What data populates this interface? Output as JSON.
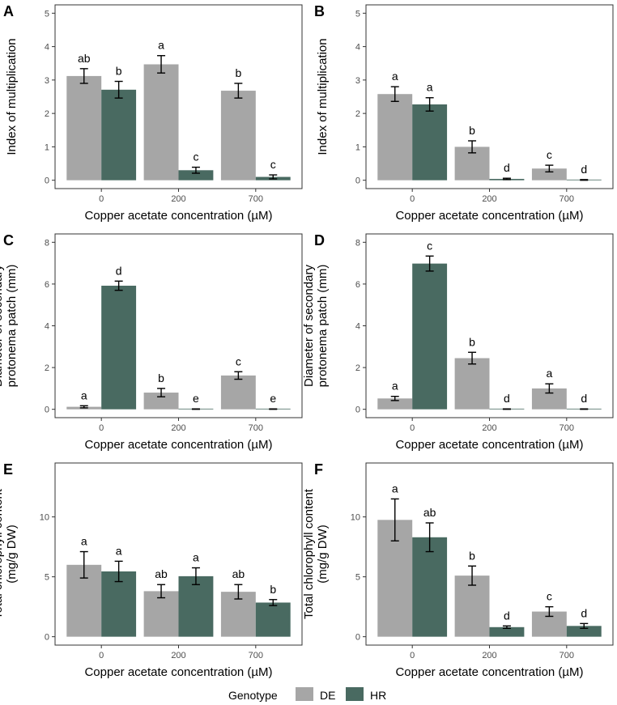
{
  "chart_data": [
    {
      "type": "bar",
      "panel": "A",
      "categories": [
        "0",
        "200",
        "700"
      ],
      "series": [
        {
          "name": "DE",
          "values": [
            3.12,
            3.47,
            2.68
          ],
          "errors": [
            0.22,
            0.26,
            0.22
          ],
          "letters": [
            "ab",
            "a",
            "b"
          ]
        },
        {
          "name": "HR",
          "values": [
            2.71,
            0.3,
            0.1
          ],
          "errors": [
            0.25,
            0.09,
            0.06
          ],
          "letters": [
            "b",
            "c",
            "c"
          ]
        }
      ],
      "ylabel": [
        "Index of multiplication"
      ],
      "xlabel": "Copper acetate concentration (µM)",
      "ylim": [
        -0.25,
        5.25
      ],
      "yticks": [
        0,
        1,
        2,
        3,
        4,
        5
      ]
    },
    {
      "type": "bar",
      "panel": "B",
      "categories": [
        "0",
        "200",
        "700"
      ],
      "series": [
        {
          "name": "DE",
          "values": [
            2.58,
            1.0,
            0.35
          ],
          "errors": [
            0.22,
            0.18,
            0.1
          ],
          "letters": [
            "a",
            "b",
            "c"
          ]
        },
        {
          "name": "HR",
          "values": [
            2.27,
            0.04,
            0.01
          ],
          "errors": [
            0.2,
            0.02,
            0.01
          ],
          "letters": [
            "a",
            "d",
            "d"
          ]
        }
      ],
      "ylabel": [
        "Index of multiplication"
      ],
      "xlabel": "Copper acetate concentration (µM)",
      "ylim": [
        -0.25,
        5.25
      ],
      "yticks": [
        0,
        1,
        2,
        3,
        4,
        5
      ]
    },
    {
      "type": "bar",
      "panel": "C",
      "categories": [
        "0",
        "200",
        "700"
      ],
      "series": [
        {
          "name": "DE",
          "values": [
            0.12,
            0.8,
            1.62
          ],
          "errors": [
            0.05,
            0.2,
            0.18
          ],
          "letters": [
            "a",
            "b",
            "c"
          ]
        },
        {
          "name": "HR",
          "values": [
            5.92,
            0.01,
            0.01
          ],
          "errors": [
            0.22,
            0.01,
            0.01
          ],
          "letters": [
            "d",
            "e",
            "e"
          ]
        }
      ],
      "ylabel": [
        "Diameter of secondary",
        "protonema patch (mm)"
      ],
      "xlabel": "Copper acetate concentration (µM)",
      "ylim": [
        -0.4,
        8.4
      ],
      "yticks": [
        0,
        2,
        4,
        6,
        8
      ]
    },
    {
      "type": "bar",
      "panel": "D",
      "categories": [
        "0",
        "200",
        "700"
      ],
      "series": [
        {
          "name": "DE",
          "values": [
            0.52,
            2.45,
            1.0
          ],
          "errors": [
            0.1,
            0.28,
            0.22
          ],
          "letters": [
            "a",
            "b",
            "a"
          ]
        },
        {
          "name": "HR",
          "values": [
            6.98,
            0.01,
            0.01
          ],
          "errors": [
            0.36,
            0.01,
            0.01
          ],
          "letters": [
            "c",
            "d",
            "d"
          ]
        }
      ],
      "ylabel": [
        "Diameter of secondary",
        "protonema patch (mm)"
      ],
      "xlabel": "Copper acetate concentration (µM)",
      "ylim": [
        -0.4,
        8.4
      ],
      "yticks": [
        0,
        2,
        4,
        6,
        8
      ]
    },
    {
      "type": "bar",
      "panel": "E",
      "categories": [
        "0",
        "200",
        "700"
      ],
      "series": [
        {
          "name": "DE",
          "values": [
            6.0,
            3.8,
            3.75
          ],
          "errors": [
            1.1,
            0.55,
            0.6
          ],
          "letters": [
            "a",
            "ab",
            "ab"
          ]
        },
        {
          "name": "HR",
          "values": [
            5.45,
            5.05,
            2.85
          ],
          "errors": [
            0.85,
            0.7,
            0.25
          ],
          "letters": [
            "a",
            "a",
            "b"
          ]
        }
      ],
      "ylabel": [
        "Total chlorophyll content",
        "(mg/g DW)"
      ],
      "xlabel": "Copper acetate concentration (µM)",
      "ylim": [
        -0.7,
        14.5
      ],
      "yticks": [
        0,
        5,
        10
      ]
    },
    {
      "type": "bar",
      "panel": "F",
      "categories": [
        "0",
        "200",
        "700"
      ],
      "series": [
        {
          "name": "DE",
          "values": [
            9.75,
            5.1,
            2.1
          ],
          "errors": [
            1.75,
            0.8,
            0.4
          ],
          "letters": [
            "a",
            "b",
            "c"
          ]
        },
        {
          "name": "HR",
          "values": [
            8.3,
            0.8,
            0.9
          ],
          "errors": [
            1.2,
            0.1,
            0.2
          ],
          "letters": [
            "ab",
            "d",
            "d"
          ]
        }
      ],
      "ylabel": [
        "Total chlorophyll content",
        "(mg/g DW)"
      ],
      "xlabel": "Copper acetate concentration (µM)",
      "ylim": [
        -0.7,
        14.5
      ],
      "yticks": [
        0,
        5,
        10
      ]
    }
  ],
  "legend": {
    "title": "Genotype",
    "items": [
      "DE",
      "HR"
    ]
  },
  "colors": {
    "DE": "#a6a6a6",
    "HR": "#496a61",
    "panel_border": "#333333",
    "tick_text": "#4d4d4d"
  }
}
